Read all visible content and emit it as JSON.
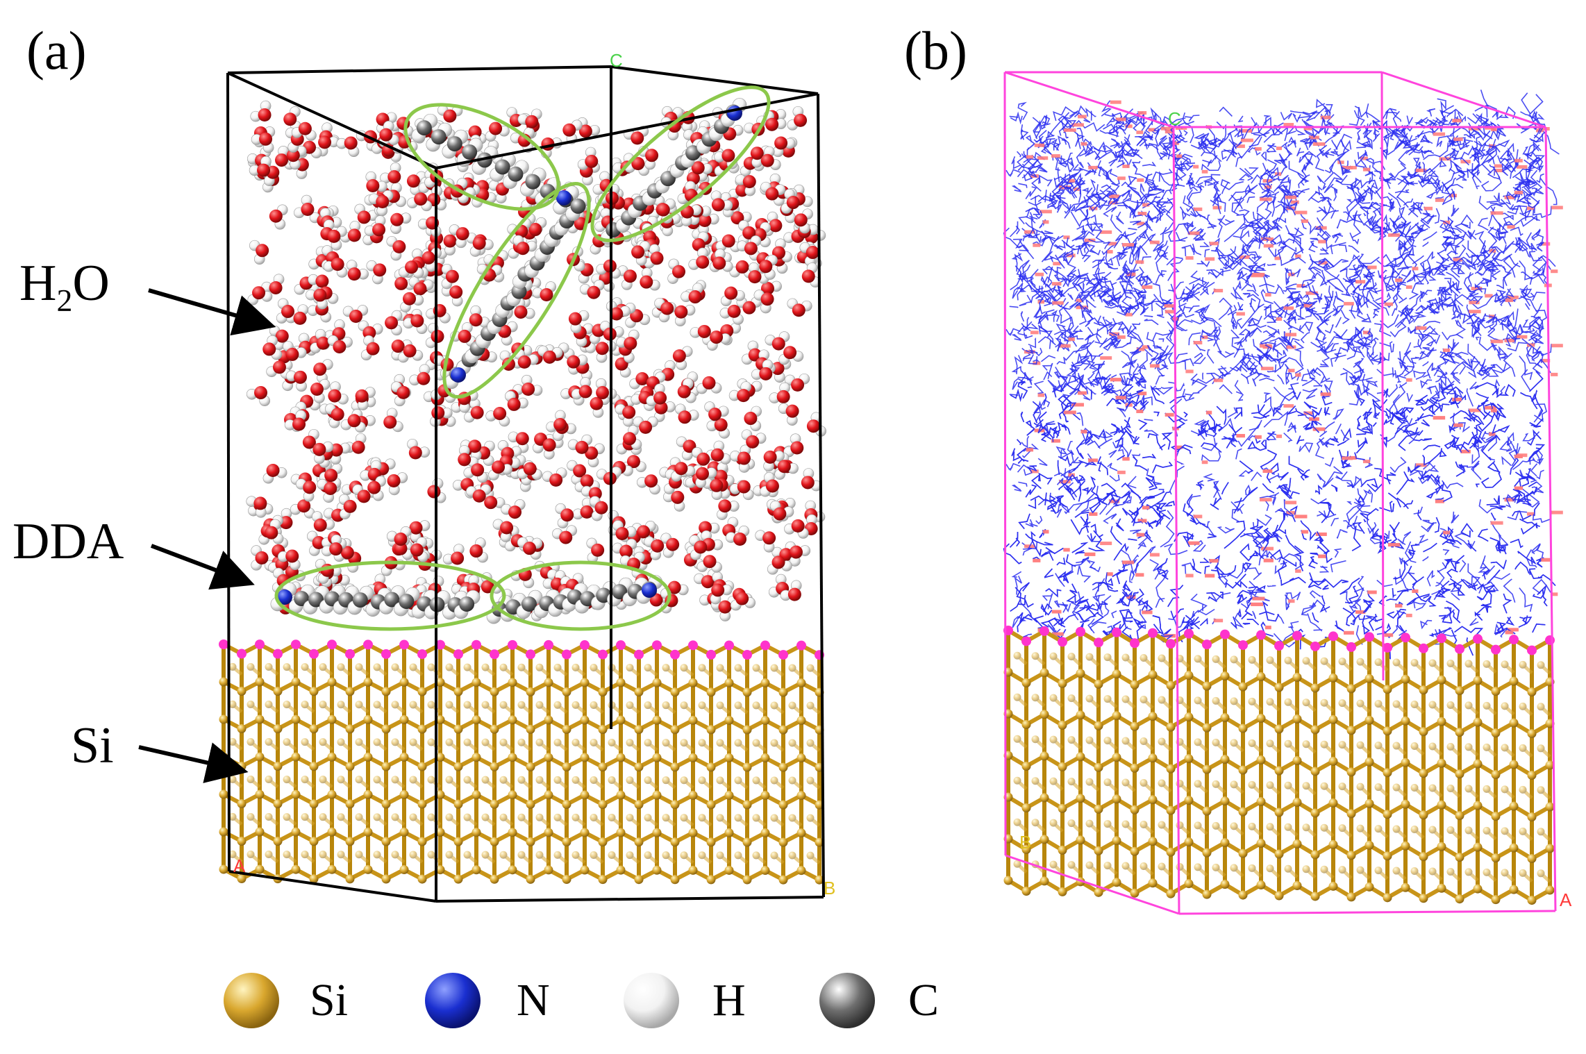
{
  "panels": {
    "a": {
      "label": "(a)"
    },
    "b": {
      "label": "(b)"
    }
  },
  "annotations": {
    "water": {
      "main": "H",
      "sub": "2",
      "tail": "O"
    },
    "dda": "DDA",
    "si": "Si"
  },
  "axis_markers": {
    "a": "A",
    "b": "B",
    "c": "C"
  },
  "legend": [
    {
      "label": "Si",
      "color": "#d9a72e"
    },
    {
      "label": "N",
      "color": "#1a2fd0"
    },
    {
      "label": "H",
      "color": "#f2f2f2"
    },
    {
      "label": "C",
      "color": "#6e6e6e"
    }
  ],
  "colors": {
    "silicon": "#d9a72e",
    "surface_atom": "#ff33cc",
    "oxygen": "#e0141a",
    "hydrogen": "#eeeeee",
    "carbon": "#a9a9a9",
    "nitrogen": "#1a2fd0",
    "highlight_ellipse": "#8cc84b",
    "cell_edge_a": "#000000",
    "cell_edge_b": "#ff44dd",
    "hbond_mesh": "#2a2ef0",
    "hbond_accent": "#ff7f7f"
  }
}
